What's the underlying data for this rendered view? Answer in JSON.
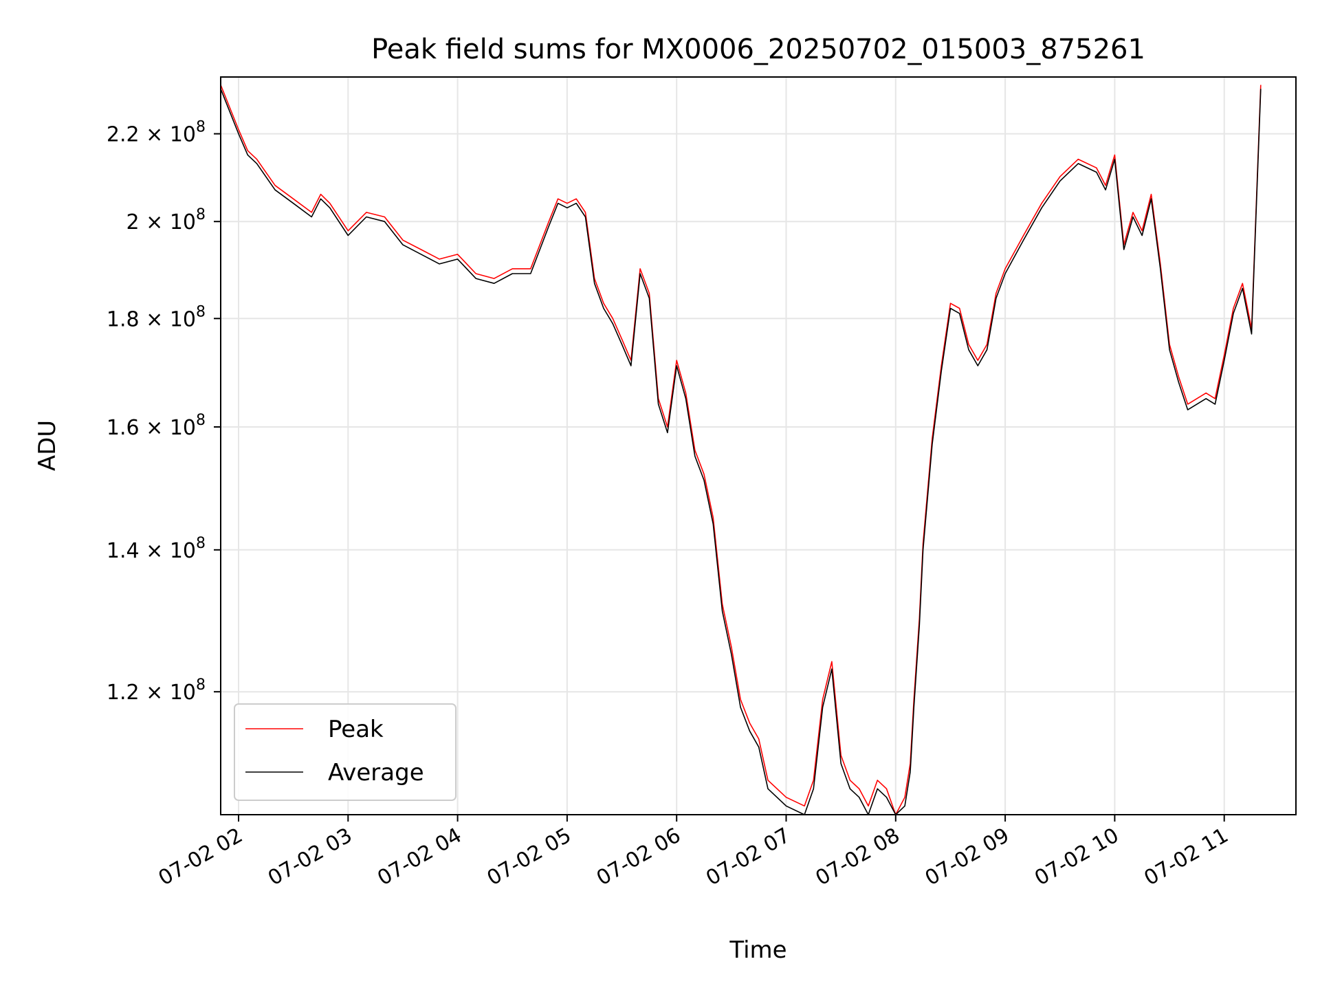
{
  "chart_data": {
    "type": "line",
    "title": "Peak field sums for MX0006_20250702_015003_875261",
    "xlabel": "Time",
    "ylabel": "ADU",
    "y_scale": "log",
    "ylim": [
      105000000,
      234000000
    ],
    "x_tick_labels": [
      "07-02 02",
      "07-02 03",
      "07-02 04",
      "07-02 05",
      "07-02 06",
      "07-02 07",
      "07-02 08",
      "07-02 09",
      "07-02 10",
      "07-02 11"
    ],
    "y_ticks": [
      {
        "value": 120000000,
        "mantissa": "1.2",
        "exponent": "8"
      },
      {
        "value": 140000000,
        "mantissa": "1.4",
        "exponent": "8"
      },
      {
        "value": 160000000,
        "mantissa": "1.6",
        "exponent": "8"
      },
      {
        "value": 180000000,
        "mantissa": "1.8",
        "exponent": "8"
      },
      {
        "value": 200000000,
        "mantissa": "2",
        "exponent": "8"
      },
      {
        "value": 220000000,
        "mantissa": "2.2",
        "exponent": "8"
      }
    ],
    "grid": true,
    "legend_position": "lower-left",
    "series": [
      {
        "name": "Peak",
        "color": "#ff0000"
      },
      {
        "name": "Average",
        "color": "#000000"
      }
    ],
    "x": [
      "07-02 01:50",
      "07-02 02:00",
      "07-02 02:05",
      "07-02 02:10",
      "07-02 02:20",
      "07-02 02:30",
      "07-02 02:40",
      "07-02 02:45",
      "07-02 02:50",
      "07-02 03:00",
      "07-02 03:10",
      "07-02 03:20",
      "07-02 03:30",
      "07-02 03:40",
      "07-02 03:50",
      "07-02 04:00",
      "07-02 04:05",
      "07-02 04:10",
      "07-02 04:20",
      "07-02 04:30",
      "07-02 04:40",
      "07-02 04:50",
      "07-02 04:55",
      "07-02 05:00",
      "07-02 05:05",
      "07-02 05:10",
      "07-02 05:15",
      "07-02 05:20",
      "07-02 05:25",
      "07-02 05:30",
      "07-02 05:35",
      "07-02 05:40",
      "07-02 05:45",
      "07-02 05:50",
      "07-02 05:55",
      "07-02 06:00",
      "07-02 06:05",
      "07-02 06:10",
      "07-02 06:15",
      "07-02 06:20",
      "07-02 06:25",
      "07-02 06:30",
      "07-02 06:35",
      "07-02 06:40",
      "07-02 06:45",
      "07-02 06:50",
      "07-02 07:00",
      "07-02 07:10",
      "07-02 07:15",
      "07-02 07:20",
      "07-02 07:25",
      "07-02 07:30",
      "07-02 07:35",
      "07-02 07:40",
      "07-02 07:45",
      "07-02 07:50",
      "07-02 07:55",
      "07-02 08:00",
      "07-02 08:05",
      "07-02 08:08",
      "07-02 08:10",
      "07-02 08:13",
      "07-02 08:15",
      "07-02 08:20",
      "07-02 08:25",
      "07-02 08:30",
      "07-02 08:35",
      "07-02 08:40",
      "07-02 08:45",
      "07-02 08:50",
      "07-02 08:55",
      "07-02 09:00",
      "07-02 09:10",
      "07-02 09:20",
      "07-02 09:30",
      "07-02 09:40",
      "07-02 09:50",
      "07-02 09:55",
      "07-02 10:00",
      "07-02 10:05",
      "07-02 10:10",
      "07-02 10:15",
      "07-02 10:20",
      "07-02 10:25",
      "07-02 10:30",
      "07-02 10:35",
      "07-02 10:40",
      "07-02 10:45",
      "07-02 10:50",
      "07-02 10:55",
      "07-02 11:00",
      "07-02 11:05",
      "07-02 11:10",
      "07-02 11:15",
      "07-02 11:20"
    ],
    "peak_values": [
      232,
      221,
      216,
      214,
      208,
      205,
      202,
      206,
      204,
      198,
      202,
      201,
      196,
      194,
      192,
      193,
      191,
      189,
      188,
      190,
      190,
      200,
      205,
      204,
      205,
      202,
      188,
      183,
      180,
      176,
      172,
      190,
      185,
      165,
      160,
      172,
      166,
      156,
      152,
      145,
      132,
      126,
      119,
      116,
      114,
      109,
      107,
      106,
      109,
      119,
      124,
      112,
      109,
      108,
      106,
      109,
      108,
      105,
      107,
      111,
      119,
      130,
      141,
      158,
      171,
      183,
      182,
      175,
      172,
      175,
      185,
      190,
      197,
      204,
      210,
      214,
      212,
      208,
      215,
      195,
      202,
      198,
      206,
      191,
      175,
      169,
      164,
      165,
      166,
      165,
      173,
      182,
      187,
      178,
      232
    ],
    "average_values": [
      231,
      220,
      215,
      213,
      207,
      204,
      201,
      205,
      203,
      197,
      201,
      200,
      195,
      193,
      191,
      192,
      190,
      188,
      187,
      189,
      189,
      199,
      204,
      203,
      204,
      201,
      187,
      182,
      179,
      175,
      171,
      189,
      184,
      164,
      159,
      171,
      165,
      155,
      151,
      144,
      131,
      125,
      118,
      115,
      113,
      108,
      106,
      105,
      108,
      118,
      123,
      111,
      108,
      107,
      105,
      108,
      107,
      104.5,
      106,
      110,
      118,
      129,
      140,
      157,
      170,
      182,
      181,
      174,
      171,
      174,
      184,
      189,
      196,
      203,
      209,
      213,
      211,
      207,
      214,
      194,
      201,
      197,
      205,
      190,
      174,
      168,
      163,
      164,
      165,
      164,
      172,
      181,
      186,
      177,
      231
    ],
    "value_unit_multiplier": 1000000
  }
}
